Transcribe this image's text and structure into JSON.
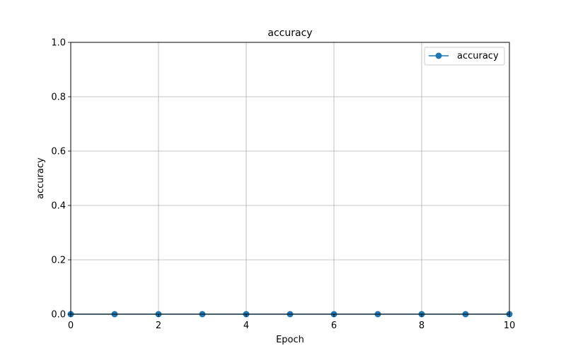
{
  "chart_data": {
    "type": "line",
    "title": "accuracy",
    "xlabel": "Epoch",
    "ylabel": "accuracy",
    "xlim": [
      0,
      10
    ],
    "ylim": [
      0,
      1
    ],
    "x_ticks": [
      0,
      2,
      4,
      6,
      8,
      10
    ],
    "y_ticks": [
      0.0,
      0.2,
      0.4,
      0.6,
      0.8,
      1.0
    ],
    "x_tick_labels": [
      "0",
      "2",
      "4",
      "6",
      "8",
      "10"
    ],
    "y_tick_labels": [
      "0.0",
      "0.2",
      "0.4",
      "0.6",
      "0.8",
      "1.0"
    ],
    "grid": true,
    "legend_position": "top-right",
    "series": [
      {
        "name": "accuracy",
        "color": "#1f77b4",
        "marker": "circle",
        "x": [
          0,
          1,
          2,
          3,
          4,
          5,
          6,
          7,
          8,
          9,
          10
        ],
        "y": [
          0,
          0,
          0,
          0,
          0,
          0,
          0,
          0,
          0,
          0,
          0
        ]
      }
    ]
  }
}
